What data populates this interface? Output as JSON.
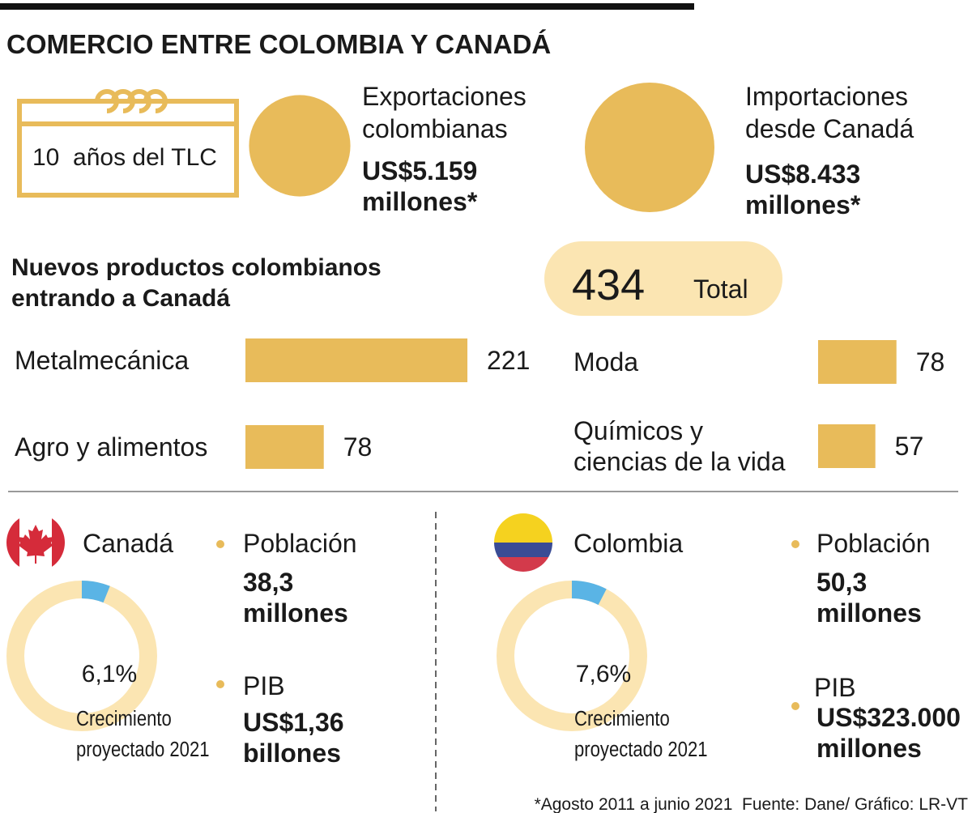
{
  "title": "COMERCIO ENTRE COLOMBIA Y CANADÁ",
  "tlc_label": "10  años del TLC",
  "trade": {
    "type": "bubble",
    "color": "#e8bb5a",
    "items": [
      {
        "label": [
          "Exportaciones",
          "colombianas"
        ],
        "value": 5159,
        "value_label": [
          "US$5.159",
          "millones*"
        ]
      },
      {
        "label": [
          "Importaciones",
          "desde Canadá"
        ],
        "value": 8433,
        "value_label": [
          "US$8.433",
          "millones*"
        ]
      }
    ]
  },
  "products": {
    "type": "bar",
    "color": "#e8bb5a",
    "title": [
      "Nuevos productos colombianos",
      "entrando a Canadá"
    ],
    "total": 434,
    "total_label": "Total",
    "categories": [
      [
        "Metalmecánica"
      ],
      [
        "Agro y alimentos"
      ],
      [
        "Moda"
      ],
      [
        "Químicos y",
        "ciencias de la vida"
      ]
    ],
    "values": [
      221,
      78,
      78,
      57
    ]
  },
  "countries": [
    {
      "name": "Canadá",
      "population_label": "Población",
      "population": [
        "38,3",
        "millones"
      ],
      "gdp_label": "PIB",
      "gdp": [
        "US$1,36",
        "billones"
      ],
      "growth": 6.1,
      "growth_value_label": "6,1%",
      "growth_caption": [
        "Crecimiento",
        "proyectado 2021"
      ]
    },
    {
      "name": "Colombia",
      "population_label": "Población",
      "population": [
        "50,3",
        "millones"
      ],
      "gdp_label": "PIB",
      "gdp": [
        "US$323.000",
        "millones"
      ],
      "growth": 7.6,
      "growth_value_label": "7,6%",
      "growth_caption": [
        "Crecimiento",
        "proyectado 2021"
      ]
    }
  ],
  "growth_colors": {
    "segment": "#5ab4e5",
    "rest": "#fbe5b2"
  },
  "footnote": "*Agosto 2011 a junio 2021  Fuente: Dane/ Gráfico: LR-VT"
}
